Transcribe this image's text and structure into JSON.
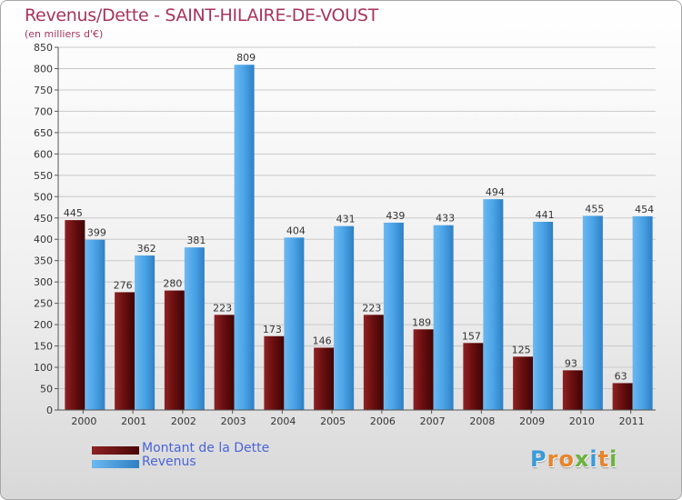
{
  "title": "Revenus/Dette - SAINT-HILAIRE-DE-VOUST",
  "subtitle": "(en milliers d'€)",
  "logo": {
    "text": "Proxiti",
    "letters": [
      {
        "ch": "P",
        "color": "#3a9bd8"
      },
      {
        "ch": "r",
        "color": "#e8842a"
      },
      {
        "ch": "o",
        "color": "#e8842a"
      },
      {
        "ch": "x",
        "color": "#6cb33e"
      },
      {
        "ch": "i",
        "color": "#3a9bd8"
      },
      {
        "ch": "t",
        "color": "#e8842a"
      },
      {
        "ch": "i",
        "color": "#6cb33e"
      }
    ]
  },
  "legend": [
    {
      "label": "Montant de la Dette",
      "color": "#6b0f10"
    },
    {
      "label": "Revenus",
      "color": "#4aa3e6"
    }
  ],
  "chart_data": {
    "type": "bar",
    "title": "Revenus/Dette - SAINT-HILAIRE-DE-VOUST",
    "subtitle": "(en milliers d'€)",
    "categories": [
      "2000",
      "2001",
      "2002",
      "2003",
      "2004",
      "2005",
      "2006",
      "2007",
      "2008",
      "2009",
      "2010",
      "2011"
    ],
    "series": [
      {
        "name": "Montant de la Dette",
        "color": "#6b0f10",
        "values": [
          445,
          276,
          280,
          223,
          173,
          146,
          223,
          189,
          157,
          125,
          93,
          63
        ]
      },
      {
        "name": "Revenus",
        "color": "#4aa3e6",
        "values": [
          399,
          362,
          381,
          809,
          404,
          431,
          439,
          433,
          494,
          441,
          455,
          454
        ]
      }
    ],
    "ylim": [
      0,
      850
    ],
    "yticks": [
      0,
      50,
      100,
      150,
      200,
      250,
      300,
      350,
      400,
      450,
      500,
      550,
      600,
      650,
      700,
      750,
      800,
      850
    ],
    "grid": true,
    "legend_position": "bottom-left"
  }
}
